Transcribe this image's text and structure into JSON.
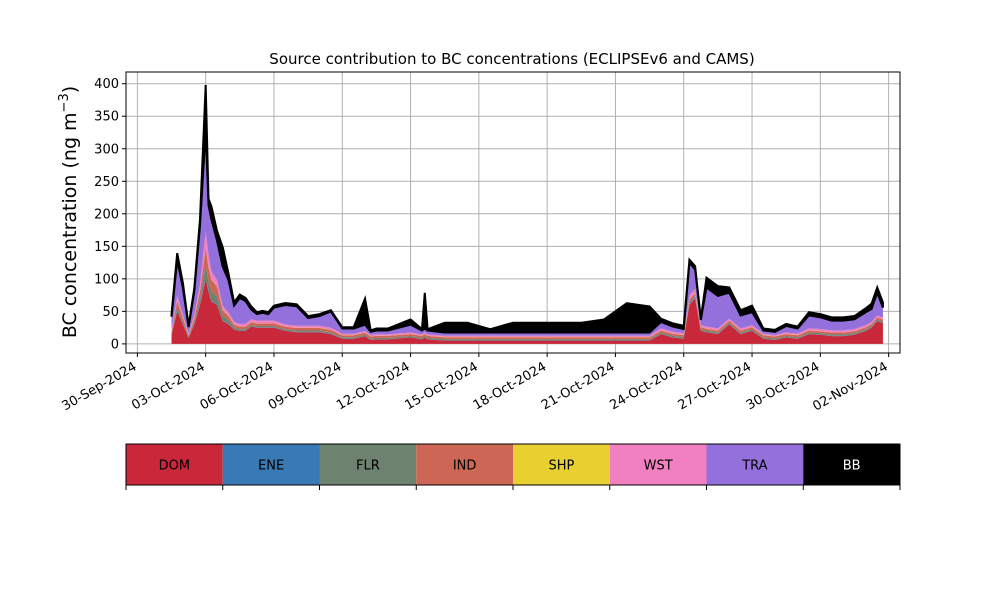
{
  "chart_data": {
    "type": "area",
    "stacked": true,
    "title": "Source contribution to BC concentrations (ECLIPSEv6 and CAMS)",
    "ylabel": "BC concentration (ng m",
    "ylabel_superscript": "−3",
    "ylabel_close": ")",
    "xlabel": "",
    "ylim": [
      -14,
      418
    ],
    "yticks": [
      0,
      50,
      100,
      150,
      200,
      250,
      300,
      350,
      400
    ],
    "xlim": [
      "2024-09-29T12:00",
      "2024-11-02T12:00"
    ],
    "xticks": [
      "30-Sep-2024",
      "03-Oct-2024",
      "06-Oct-2024",
      "09-Oct-2024",
      "12-Oct-2024",
      "15-Oct-2024",
      "18-Oct-2024",
      "21-Oct-2024",
      "24-Oct-2024",
      "27-Oct-2024",
      "30-Oct-2024",
      "02-Nov-2024"
    ],
    "grid": true,
    "legend_position": "bottom, horizontal colorbar",
    "x": [
      "2024-10-01T12:00",
      "2024-10-01T18:00",
      "2024-10-02T00:00",
      "2024-10-02T06:00",
      "2024-10-02T12:00",
      "2024-10-02T18:00",
      "2024-10-03T00:00",
      "2024-10-03T03:00",
      "2024-10-03T06:00",
      "2024-10-03T12:00",
      "2024-10-03T18:00",
      "2024-10-04T00:00",
      "2024-10-04T06:00",
      "2024-10-04T12:00",
      "2024-10-04T18:00",
      "2024-10-05T00:00",
      "2024-10-05T06:00",
      "2024-10-05T12:00",
      "2024-10-05T18:00",
      "2024-10-06T00:00",
      "2024-10-06T12:00",
      "2024-10-07T00:00",
      "2024-10-07T12:00",
      "2024-10-08T00:00",
      "2024-10-08T12:00",
      "2024-10-09T00:00",
      "2024-10-09T12:00",
      "2024-10-10T00:00",
      "2024-10-10T06:00",
      "2024-10-10T12:00",
      "2024-10-11T00:00",
      "2024-10-12T00:00",
      "2024-10-12T12:00",
      "2024-10-12T15:00",
      "2024-10-12T18:00",
      "2024-10-13T12:00",
      "2024-10-14T12:00",
      "2024-10-15T12:00",
      "2024-10-16T12:00",
      "2024-10-17T12:00",
      "2024-10-18T12:00",
      "2024-10-19T12:00",
      "2024-10-20T12:00",
      "2024-10-21T12:00",
      "2024-10-22T12:00",
      "2024-10-23T00:00",
      "2024-10-23T12:00",
      "2024-10-24T00:00",
      "2024-10-24T06:00",
      "2024-10-24T12:00",
      "2024-10-24T18:00",
      "2024-10-25T00:00",
      "2024-10-25T12:00",
      "2024-10-26T00:00",
      "2024-10-26T12:00",
      "2024-10-27T00:00",
      "2024-10-27T12:00",
      "2024-10-28T00:00",
      "2024-10-28T12:00",
      "2024-10-29T00:00",
      "2024-10-29T12:00",
      "2024-10-30T00:00",
      "2024-10-30T12:00",
      "2024-10-31T00:00",
      "2024-10-31T12:00",
      "2024-11-01T00:00",
      "2024-11-01T06:00",
      "2024-11-01T12:00",
      "2024-11-01T18:00"
    ],
    "series": [
      {
        "name": "DOM",
        "color": "#c8283a",
        "values": [
          14,
          50,
          30,
          9,
          30,
          60,
          100,
          80,
          65,
          60,
          35,
          30,
          22,
          20,
          20,
          27,
          25,
          25,
          25,
          25,
          20,
          18,
          18,
          18,
          15,
          8,
          8,
          12,
          6,
          7,
          7,
          10,
          7,
          10,
          7,
          5,
          5,
          5,
          5,
          5,
          5,
          5,
          5,
          5,
          5,
          15,
          10,
          8,
          60,
          70,
          20,
          18,
          15,
          30,
          15,
          20,
          8,
          6,
          10,
          8,
          15,
          14,
          12,
          12,
          14,
          20,
          25,
          35,
          32
        ]
      },
      {
        "name": "ENE",
        "color": "#3a7ab4",
        "values": [
          0.5,
          1,
          1,
          0.5,
          1,
          1,
          2,
          2,
          1,
          1,
          1,
          1,
          0.5,
          0.5,
          0.5,
          0.5,
          0.5,
          0.5,
          0.5,
          0.5,
          0.5,
          0.5,
          0.5,
          0.5,
          0.5,
          0.3,
          0.3,
          0.3,
          0.3,
          0.3,
          0.3,
          0.3,
          0.3,
          0.3,
          0.3,
          0.3,
          0.3,
          0.3,
          0.3,
          0.3,
          0.3,
          0.3,
          0.3,
          0.3,
          0.3,
          0.5,
          0.5,
          0.5,
          1,
          1,
          0.5,
          0.5,
          0.5,
          0.5,
          0.5,
          0.5,
          0.3,
          0.3,
          0.3,
          0.3,
          0.5,
          0.5,
          0.5,
          0.5,
          0.5,
          0.5,
          0.5,
          0.5,
          0.5
        ]
      },
      {
        "name": "FLR",
        "color": "#6e8270",
        "values": [
          1,
          5,
          3,
          2,
          3,
          8,
          20,
          15,
          15,
          12,
          8,
          6,
          3,
          2,
          2,
          2,
          2,
          2,
          2,
          2,
          2,
          2,
          2,
          2,
          2,
          2,
          2,
          2,
          2,
          2,
          2,
          2,
          2,
          2,
          2,
          2,
          2,
          2,
          2,
          2,
          2,
          2,
          2,
          2,
          2,
          2,
          2,
          2,
          3,
          3,
          2,
          2,
          2,
          2,
          2,
          2,
          2,
          2,
          2,
          2,
          2,
          2,
          2,
          2,
          2,
          2,
          2,
          2,
          2
        ]
      },
      {
        "name": "IND",
        "color": "#cd6655",
        "values": [
          3,
          10,
          6,
          2,
          6,
          12,
          25,
          20,
          18,
          15,
          8,
          6,
          4,
          4,
          4,
          4,
          4,
          4,
          4,
          4,
          4,
          4,
          4,
          4,
          4,
          3,
          3,
          3,
          3,
          3,
          3,
          3,
          3,
          3,
          3,
          3,
          3,
          3,
          3,
          3,
          3,
          3,
          3,
          3,
          3,
          3,
          3,
          3,
          4,
          4,
          3,
          3,
          3,
          3,
          3,
          3,
          3,
          3,
          3,
          3,
          3,
          3,
          3,
          3,
          3,
          3,
          3,
          3,
          3
        ]
      },
      {
        "name": "SHP",
        "color": "#e8d030",
        "values": [
          0.3,
          0.5,
          0.5,
          0.3,
          0.5,
          0.5,
          1,
          1,
          0.5,
          0.5,
          0.5,
          0.5,
          0.3,
          0.3,
          0.3,
          0.3,
          0.3,
          0.3,
          0.3,
          0.3,
          0.3,
          0.3,
          0.3,
          0.3,
          0.3,
          0.3,
          0.3,
          0.3,
          0.3,
          0.3,
          0.3,
          0.3,
          0.3,
          0.3,
          0.3,
          0.3,
          0.3,
          0.3,
          0.3,
          0.3,
          0.3,
          0.3,
          0.3,
          0.3,
          0.3,
          0.3,
          0.3,
          0.3,
          0.5,
          0.5,
          0.3,
          0.3,
          0.3,
          0.3,
          0.3,
          0.3,
          0.3,
          0.3,
          0.3,
          0.3,
          0.3,
          0.3,
          0.3,
          0.3,
          0.3,
          0.3,
          0.3,
          0.3,
          0.3
        ]
      },
      {
        "name": "WST",
        "color": "#f080c0",
        "values": [
          3,
          8,
          5,
          2,
          5,
          10,
          25,
          20,
          12,
          10,
          6,
          5,
          4,
          4,
          4,
          4,
          4,
          4,
          4,
          4,
          3,
          3,
          3,
          3,
          3,
          2,
          2,
          2,
          2,
          2,
          2,
          2,
          2,
          2,
          2,
          2,
          2,
          2,
          2,
          2,
          2,
          2,
          2,
          2,
          2,
          3,
          3,
          3,
          6,
          6,
          3,
          3,
          3,
          3,
          3,
          3,
          2,
          2,
          2,
          2,
          3,
          3,
          3,
          3,
          3,
          3,
          3,
          3,
          3
        ]
      },
      {
        "name": "TRA",
        "color": "#9370db",
        "values": [
          20,
          55,
          40,
          10,
          35,
          90,
          155,
          75,
          80,
          60,
          60,
          50,
          25,
          40,
          35,
          15,
          10,
          12,
          10,
          20,
          30,
          30,
          12,
          15,
          25,
          8,
          8,
          10,
          5,
          6,
          6,
          12,
          6,
          6,
          6,
          5,
          5,
          5,
          5,
          5,
          5,
          5,
          5,
          5,
          5,
          10,
          8,
          6,
          50,
          30,
          8,
          60,
          50,
          40,
          20,
          20,
          5,
          5,
          10,
          8,
          20,
          18,
          15,
          15,
          15,
          20,
          20,
          35,
          15
        ]
      },
      {
        "name": "BB",
        "color": "#000000",
        "values": [
          4,
          10,
          8,
          2,
          5,
          10,
          70,
          10,
          20,
          15,
          30,
          10,
          5,
          5,
          5,
          5,
          3,
          3,
          3,
          3,
          3,
          3,
          3,
          3,
          2,
          2,
          2,
          40,
          2,
          3,
          3,
          8,
          2,
          55,
          2,
          15,
          15,
          5,
          15,
          15,
          15,
          15,
          20,
          45,
          40,
          5,
          5,
          5,
          5,
          5,
          2,
          15,
          15,
          8,
          8,
          10,
          3,
          3,
          3,
          3,
          5,
          5,
          5,
          5,
          5,
          6,
          8,
          8,
          8
        ]
      }
    ]
  },
  "legend": {
    "items": [
      {
        "label": "DOM",
        "color": "#c8283a",
        "text_color": "#000000"
      },
      {
        "label": "ENE",
        "color": "#3a7ab4",
        "text_color": "#000000"
      },
      {
        "label": "FLR",
        "color": "#6e8270",
        "text_color": "#000000"
      },
      {
        "label": "IND",
        "color": "#cd6655",
        "text_color": "#000000"
      },
      {
        "label": "SHP",
        "color": "#e8d030",
        "text_color": "#000000"
      },
      {
        "label": "WST",
        "color": "#f080c0",
        "text_color": "#000000"
      },
      {
        "label": "TRA",
        "color": "#9370db",
        "text_color": "#000000"
      },
      {
        "label": "BB",
        "color": "#000000",
        "text_color": "#ffffff"
      }
    ]
  }
}
